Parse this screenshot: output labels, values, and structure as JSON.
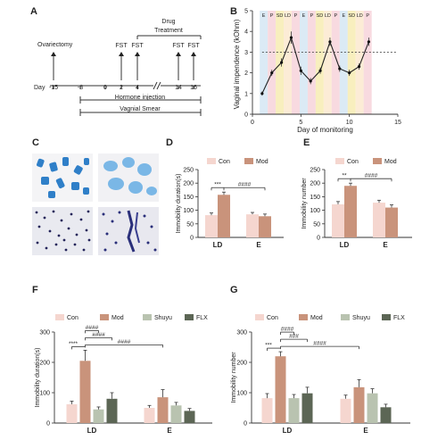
{
  "panels": {
    "A": {
      "letter": "A",
      "drug_label_1": "Drug",
      "drug_label_2": "Treatment",
      "ovariectomy": "Ovariectomy",
      "fst": "FST",
      "day_label": "Day",
      "ticks": [
        "-15",
        "-8",
        "0",
        "2",
        "4",
        "14",
        "16"
      ],
      "hormone": "Hormone injection",
      "smear": "Vagnial Smear"
    },
    "B": {
      "letter": "B"
    },
    "C": {
      "letter": "C"
    },
    "D": {
      "letter": "D"
    },
    "E": {
      "letter": "E"
    },
    "F": {
      "letter": "F"
    },
    "G": {
      "letter": "G"
    }
  },
  "colors": {
    "con": "#f5d6cf",
    "mod": "#c9937b",
    "shuyu": "#b9c3b0",
    "flx": "#5c6655",
    "band_e": "#cfe3f2",
    "band_p": "#f5cdd6",
    "band_ld": "#fbe6c8",
    "band_sd": "#f6e9a8"
  },
  "chart_data": [
    {
      "panel": "B",
      "type": "line",
      "xlabel": "Day of monitoring",
      "ylabel": "Vaginal impendence (kOhm)",
      "xlim": [
        0,
        15
      ],
      "ylim": [
        0,
        5
      ],
      "xticks": [
        "0",
        "5",
        "10",
        "15"
      ],
      "yticks": [
        "0",
        "1",
        "2",
        "3",
        "4",
        "5"
      ],
      "x": [
        1,
        2,
        3,
        4,
        5,
        6,
        7,
        8,
        9,
        10,
        11,
        12
      ],
      "series": [
        {
          "values": [
            1.0,
            2.0,
            2.5,
            3.7,
            2.1,
            1.6,
            2.1,
            3.5,
            2.2,
            2.0,
            2.3,
            3.5
          ]
        }
      ],
      "errors": [
        0.1,
        0.15,
        0.2,
        0.3,
        0.2,
        0.15,
        0.15,
        0.2,
        0.15,
        0.15,
        0.15,
        0.2
      ],
      "threshold": 3.0,
      "phase_labels": [
        "E",
        "P",
        "SD",
        "LD",
        "P",
        "E",
        "P",
        "SD",
        "LD",
        "P",
        "E",
        "SD",
        "LD",
        "P"
      ]
    },
    {
      "panel": "D",
      "type": "bar",
      "ylabel": "Immobility duration(s)",
      "categories": [
        "LD",
        "E"
      ],
      "series": [
        {
          "name": "Con",
          "values": [
            82,
            85
          ],
          "errors": [
            8,
            7
          ]
        },
        {
          "name": "Mod",
          "values": [
            157,
            78
          ],
          "errors": [
            10,
            8
          ]
        }
      ],
      "ylim": [
        0,
        250
      ],
      "yticks": [
        "0",
        "50",
        "100",
        "150",
        "200",
        "250"
      ],
      "significance": [
        "***",
        "####"
      ]
    },
    {
      "panel": "E",
      "type": "bar",
      "ylabel": "Immobility number",
      "categories": [
        "LD",
        "E"
      ],
      "series": [
        {
          "name": "Con",
          "values": [
            122,
            128
          ],
          "errors": [
            10,
            9
          ]
        },
        {
          "name": "Mod",
          "values": [
            190,
            110
          ],
          "errors": [
            10,
            10
          ]
        }
      ],
      "ylim": [
        0,
        250
      ],
      "yticks": [
        "0",
        "50",
        "100",
        "150",
        "200",
        "250"
      ],
      "significance": [
        "**",
        "####"
      ]
    },
    {
      "panel": "F",
      "type": "bar",
      "ylabel": "Immobility duration(s)",
      "categories": [
        "LD",
        "E"
      ],
      "series": [
        {
          "name": "Con",
          "values": [
            62,
            50
          ],
          "errors": [
            10,
            8
          ]
        },
        {
          "name": "Mod",
          "values": [
            205,
            85
          ],
          "errors": [
            35,
            25
          ]
        },
        {
          "name": "Shuyu",
          "values": [
            45,
            58
          ],
          "errors": [
            8,
            10
          ]
        },
        {
          "name": "FLX",
          "values": [
            80,
            40
          ],
          "errors": [
            20,
            8
          ]
        }
      ],
      "ylim": [
        0,
        300
      ],
      "yticks": [
        "0",
        "100",
        "200",
        "300"
      ],
      "significance": [
        "****",
        "####",
        "####",
        "####"
      ]
    },
    {
      "panel": "G",
      "type": "bar",
      "ylabel": "Immobility number",
      "categories": [
        "LD",
        "E"
      ],
      "series": [
        {
          "name": "Con",
          "values": [
            82,
            80
          ],
          "errors": [
            15,
            12
          ]
        },
        {
          "name": "Mod",
          "values": [
            220,
            118
          ],
          "errors": [
            15,
            25
          ]
        },
        {
          "name": "Shuyu",
          "values": [
            82,
            98
          ],
          "errors": [
            12,
            15
          ]
        },
        {
          "name": "FLX",
          "values": [
            98,
            52
          ],
          "errors": [
            20,
            10
          ]
        }
      ],
      "ylim": [
        0,
        300
      ],
      "yticks": [
        "0",
        "100",
        "200",
        "300"
      ],
      "significance": [
        "***",
        "####",
        "###",
        "####"
      ]
    }
  ]
}
